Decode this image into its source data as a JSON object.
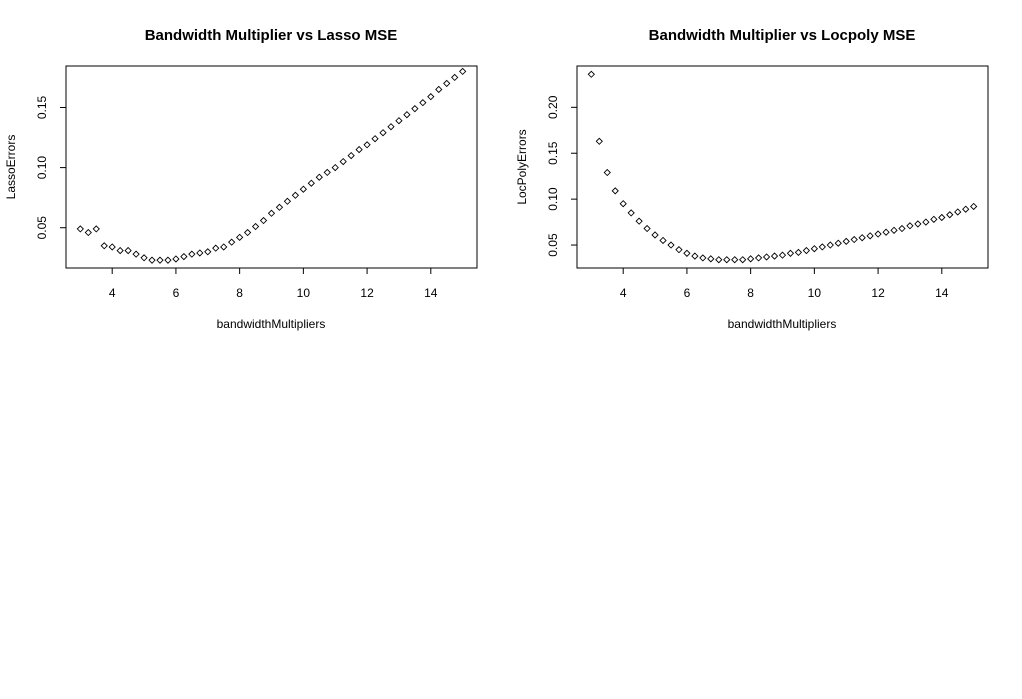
{
  "chart_data": [
    {
      "type": "scatter",
      "title": "Bandwidth Multiplier vs Lasso MSE",
      "xlabel": "bandwidthMultipliers",
      "ylabel": "LassoErrors",
      "xlim": [
        2.55,
        15.45
      ],
      "ylim": [
        0.0165,
        0.1845
      ],
      "xticks": [
        4,
        6,
        8,
        10,
        12,
        14
      ],
      "yticks": [
        0.05,
        0.1,
        0.15
      ],
      "xtick_labels": [
        "4",
        "6",
        "8",
        "10",
        "12",
        "14"
      ],
      "ytick_labels": [
        "0.05",
        "0.10",
        "0.15"
      ],
      "marker": "open-diamond",
      "x": [
        3.0,
        3.25,
        3.5,
        3.75,
        4.0,
        4.25,
        4.5,
        4.75,
        5.0,
        5.25,
        5.5,
        5.75,
        6.0,
        6.25,
        6.5,
        6.75,
        7.0,
        7.25,
        7.5,
        7.75,
        8.0,
        8.25,
        8.5,
        8.75,
        9.0,
        9.25,
        9.5,
        9.75,
        10.0,
        10.25,
        10.5,
        10.75,
        11.0,
        11.25,
        11.5,
        11.75,
        12.0,
        12.25,
        12.5,
        12.75,
        13.0,
        13.25,
        13.5,
        13.75,
        14.0,
        14.25,
        14.5,
        14.75,
        15.0
      ],
      "y": [
        0.049,
        0.046,
        0.049,
        0.035,
        0.034,
        0.031,
        0.031,
        0.028,
        0.025,
        0.023,
        0.023,
        0.023,
        0.024,
        0.026,
        0.028,
        0.029,
        0.03,
        0.033,
        0.034,
        0.038,
        0.042,
        0.046,
        0.051,
        0.056,
        0.062,
        0.067,
        0.072,
        0.077,
        0.082,
        0.087,
        0.092,
        0.096,
        0.1,
        0.105,
        0.11,
        0.115,
        0.119,
        0.124,
        0.129,
        0.134,
        0.139,
        0.144,
        0.149,
        0.154,
        0.159,
        0.165,
        0.17,
        0.175,
        0.18
      ]
    },
    {
      "type": "scatter",
      "title": "Bandwidth Multiplier vs Locpoly MSE",
      "xlabel": "bandwidthMultipliers",
      "ylabel": "LocPolyErrors",
      "xlim": [
        2.55,
        15.45
      ],
      "ylim": [
        0.025,
        0.245
      ],
      "xticks": [
        4,
        6,
        8,
        10,
        12,
        14
      ],
      "yticks": [
        0.05,
        0.1,
        0.15,
        0.2
      ],
      "xtick_labels": [
        "4",
        "6",
        "8",
        "10",
        "12",
        "14"
      ],
      "ytick_labels": [
        "0.05",
        "0.10",
        "0.15",
        "0.20"
      ],
      "marker": "open-diamond",
      "x": [
        3.0,
        3.25,
        3.5,
        3.75,
        4.0,
        4.25,
        4.5,
        4.75,
        5.0,
        5.25,
        5.5,
        5.75,
        6.0,
        6.25,
        6.5,
        6.75,
        7.0,
        7.25,
        7.5,
        7.75,
        8.0,
        8.25,
        8.5,
        8.75,
        9.0,
        9.25,
        9.5,
        9.75,
        10.0,
        10.25,
        10.5,
        10.75,
        11.0,
        11.25,
        11.5,
        11.75,
        12.0,
        12.25,
        12.5,
        12.75,
        13.0,
        13.25,
        13.5,
        13.75,
        14.0,
        14.25,
        14.5,
        14.75,
        15.0
      ],
      "y": [
        0.236,
        0.163,
        0.129,
        0.109,
        0.095,
        0.085,
        0.076,
        0.068,
        0.061,
        0.055,
        0.05,
        0.045,
        0.041,
        0.038,
        0.036,
        0.035,
        0.034,
        0.034,
        0.034,
        0.034,
        0.035,
        0.036,
        0.037,
        0.038,
        0.039,
        0.041,
        0.042,
        0.044,
        0.046,
        0.048,
        0.05,
        0.052,
        0.054,
        0.056,
        0.058,
        0.06,
        0.062,
        0.064,
        0.066,
        0.068,
        0.071,
        0.073,
        0.075,
        0.078,
        0.08,
        0.083,
        0.086,
        0.089,
        0.092
      ]
    }
  ]
}
